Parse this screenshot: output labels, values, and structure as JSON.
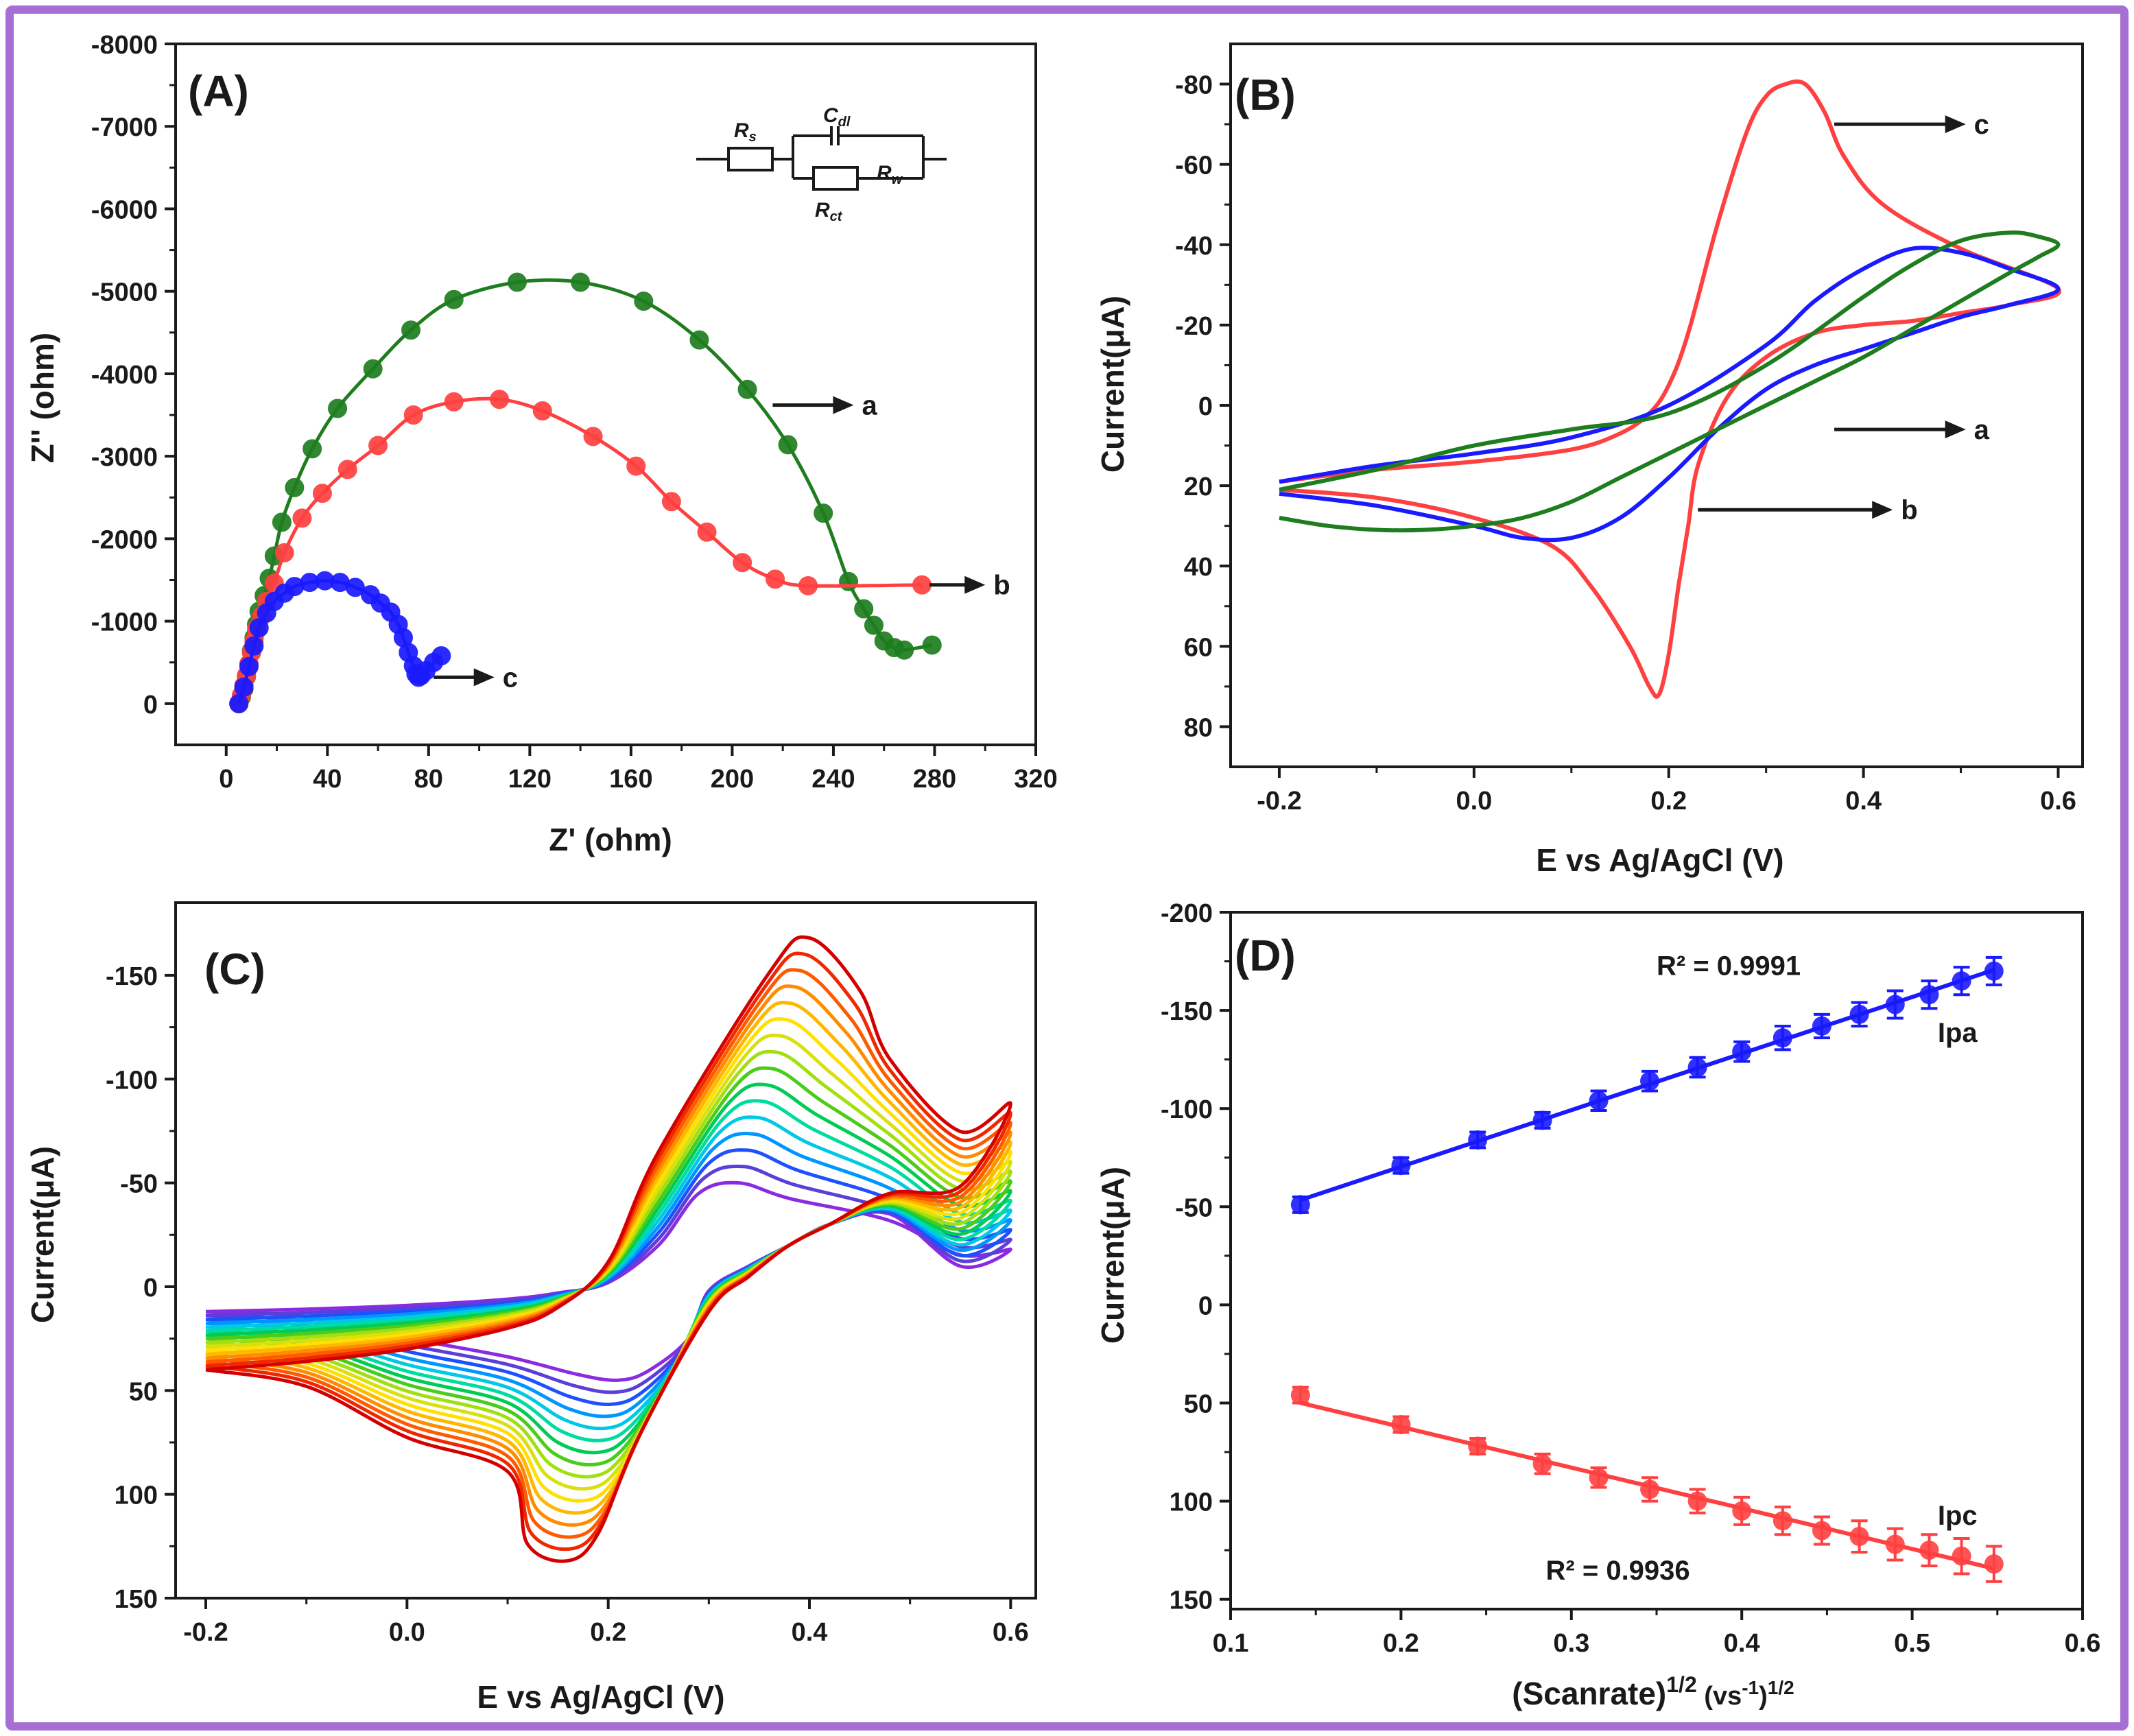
{
  "colors": {
    "border": "#a56fd4",
    "green": "#1e7d1e",
    "red": "#ff4040",
    "blue": "#1a1aff",
    "axis": "#1a1a1a"
  },
  "chart_data": [
    {
      "id": "A",
      "type": "scatter",
      "panel_label": "(A)",
      "xlabel": "Z' (ohm)",
      "ylabel": "Z'' (ohm)",
      "xlim": [
        -20,
        320
      ],
      "ylim": [
        500,
        -8000
      ],
      "xticks": [
        0,
        40,
        80,
        120,
        160,
        200,
        240,
        280,
        320
      ],
      "xtick_labels": [
        "0",
        "40",
        "80",
        "120",
        "160",
        "200",
        "240",
        "280",
        "320"
      ],
      "yticks": [
        0,
        -1000,
        -2000,
        -3000,
        -4000,
        -5000,
        -6000,
        -7000,
        -8000
      ],
      "ytick_labels": [
        "0",
        "-1000",
        "-2000",
        "-3000",
        "-4000",
        "-5000",
        "-6000",
        "-7000",
        "-8000"
      ],
      "circuit_labels": {
        "rs": "R",
        "rs_sub": "s",
        "cdl": "C",
        "cdl_sub": "dl",
        "rw": "R",
        "rw_sub": "w",
        "rct": "R",
        "rct_sub": "ct"
      },
      "series": [
        {
          "name": "a",
          "color": "green",
          "x": [
            5,
            6,
            7,
            8,
            9,
            10,
            11,
            12,
            13,
            15,
            17,
            19,
            22,
            27,
            34,
            44,
            58,
            73,
            90,
            115,
            140,
            165,
            187,
            206,
            222,
            236,
            246,
            252,
            256,
            260,
            264,
            268,
            279
          ],
          "y": [
            0,
            -80,
            -180,
            -330,
            -480,
            -640,
            -800,
            -960,
            -1120,
            -1310,
            -1520,
            -1790,
            -2200,
            -2620,
            -3090,
            -3580,
            -4060,
            -4530,
            -4900,
            -5110,
            -5110,
            -4880,
            -4410,
            -3810,
            -3140,
            -2310,
            -1480,
            -1150,
            -950,
            -760,
            -680,
            -650,
            -710
          ]
        },
        {
          "name": "b",
          "color": "red",
          "x": [
            5,
            6,
            7,
            8,
            9,
            10,
            11,
            12,
            14,
            16,
            19,
            23,
            30,
            38,
            48,
            60,
            74,
            90,
            108,
            125,
            145,
            162,
            176,
            190,
            204,
            217,
            230,
            275
          ],
          "y": [
            0,
            -100,
            -220,
            -340,
            -480,
            -620,
            -760,
            -900,
            -1060,
            -1240,
            -1460,
            -1830,
            -2250,
            -2550,
            -2840,
            -3130,
            -3500,
            -3660,
            -3690,
            -3550,
            -3240,
            -2880,
            -2450,
            -2080,
            -1710,
            -1510,
            -1430,
            -1440
          ]
        },
        {
          "name": "c",
          "color": "blue",
          "x": [
            5,
            7,
            9,
            11,
            13,
            16,
            19,
            23,
            27,
            33,
            39,
            45,
            51,
            57,
            61,
            65,
            68,
            70,
            72,
            74,
            75,
            76,
            77,
            79,
            82,
            85
          ],
          "y": [
            0,
            -200,
            -450,
            -700,
            -920,
            -1100,
            -1240,
            -1340,
            -1420,
            -1470,
            -1490,
            -1470,
            -1410,
            -1320,
            -1220,
            -1110,
            -960,
            -800,
            -620,
            -460,
            -360,
            -320,
            -340,
            -400,
            -500,
            -580
          ]
        }
      ],
      "annotations": [
        "a",
        "b",
        "c"
      ]
    },
    {
      "id": "B",
      "type": "line",
      "panel_label": "(B)",
      "xlabel": "E vs Ag/AgCl (V)",
      "ylabel": "Current(μA)",
      "xlim": [
        -0.25,
        0.625
      ],
      "ylim": [
        90,
        -90
      ],
      "xticks": [
        -0.2,
        0.0,
        0.2,
        0.4,
        0.6
      ],
      "xtick_labels": [
        "-0.2",
        "0.0",
        "0.2",
        "0.4",
        "0.6"
      ],
      "yticks": [
        80,
        60,
        40,
        20,
        0,
        -20,
        -40,
        -60,
        -80
      ],
      "ytick_labels": [
        "80",
        "60",
        "40",
        "20",
        "0",
        "-20",
        "-40",
        "-60",
        "-80"
      ],
      "series": [
        {
          "name": "c",
          "color": "red",
          "x": [
            -0.2,
            -0.1,
            0.0,
            0.1,
            0.15,
            0.18,
            0.2,
            0.22,
            0.25,
            0.28,
            0.3,
            0.32,
            0.34,
            0.36,
            0.38,
            0.42,
            0.5,
            0.6,
            0.55,
            0.5,
            0.45,
            0.4,
            0.35,
            0.3,
            0.26,
            0.23,
            0.22,
            0.21,
            0.2,
            0.19,
            0.18,
            0.16,
            0.12,
            0.08,
            0.0,
            -0.1,
            -0.2
          ],
          "y": [
            19,
            16,
            14,
            11,
            7,
            2,
            -5,
            -18,
            -45,
            -68,
            -77,
            -80,
            -80,
            -73,
            -62,
            -50,
            -39,
            -29,
            -25,
            -23,
            -21,
            -20,
            -18,
            -12,
            -2,
            15,
            30,
            45,
            62,
            72,
            70,
            60,
            45,
            35,
            28,
            23,
            21
          ]
        },
        {
          "name": "a",
          "color": "blue",
          "x": [
            -0.2,
            -0.1,
            0.0,
            0.1,
            0.2,
            0.3,
            0.35,
            0.4,
            0.45,
            0.5,
            0.55,
            0.6,
            0.55,
            0.5,
            0.45,
            0.4,
            0.35,
            0.3,
            0.25,
            0.2,
            0.15,
            0.1,
            0.05,
            0.0,
            -0.1,
            -0.2
          ],
          "y": [
            19,
            15,
            12,
            8,
            0,
            -15,
            -26,
            -34,
            -39,
            -38,
            -34,
            -29,
            -25,
            -22,
            -18,
            -14,
            -10,
            -4,
            6,
            18,
            28,
            33,
            33,
            30,
            25,
            22
          ]
        },
        {
          "name": "b",
          "color": "green",
          "x": [
            -0.2,
            -0.1,
            0.0,
            0.1,
            0.2,
            0.3,
            0.4,
            0.45,
            0.5,
            0.55,
            0.58,
            0.6,
            0.58,
            0.55,
            0.5,
            0.45,
            0.4,
            0.35,
            0.3,
            0.25,
            0.2,
            0.15,
            0.1,
            0.05,
            0.0,
            -0.05,
            -0.1,
            -0.15,
            -0.2
          ],
          "y": [
            21,
            16,
            10,
            6,
            2,
            -10,
            -27,
            -35,
            -41,
            -43,
            -42,
            -40,
            -37,
            -33,
            -26,
            -19,
            -12,
            -6,
            0,
            6,
            12,
            18,
            24,
            28,
            30,
            31,
            31,
            30,
            28
          ]
        }
      ],
      "annotations": [
        "c",
        "a",
        "b"
      ]
    },
    {
      "id": "C",
      "type": "line",
      "panel_label": "(C)",
      "xlabel": "E vs Ag/AgCl (V)",
      "ylabel": "Current(μA)",
      "xlim": [
        -0.23,
        0.625
      ],
      "ylim": [
        150,
        -185
      ],
      "xticks": [
        -0.2,
        0.0,
        0.2,
        0.4,
        0.6
      ],
      "xtick_labels": [
        "-0.2",
        "0.0",
        "0.2",
        "0.4",
        "0.6"
      ],
      "yticks": [
        150,
        100,
        50,
        0,
        -50,
        -100,
        -150
      ],
      "ytick_labels": [
        "150",
        "100",
        "50",
        "0",
        "-50",
        "-100",
        "-150"
      ],
      "series_count": 16,
      "anodic_peak_range": [
        -50,
        -168
      ],
      "cathodic_peak_range": [
        45,
        132
      ],
      "color_scale": [
        "#8a2be2",
        "#5a3fd8",
        "#1e50ff",
        "#0096ff",
        "#00c8e6",
        "#00dca0",
        "#00cc55",
        "#4ccc1a",
        "#a0e010",
        "#d8e010",
        "#ffe000",
        "#ffb800",
        "#ff8c00",
        "#ff5a00",
        "#f02800",
        "#d40000"
      ]
    },
    {
      "id": "D",
      "type": "scatter",
      "panel_label": "(D)",
      "xlabel": "(Scanrate)",
      "xlabel_sup1": "1/2",
      "xlabel_mid": " (vs",
      "xlabel_sup2": "-1",
      "xlabel_end": ")",
      "xlabel_sup3": "1/2",
      "ylabel": "Current(μA)",
      "xlim": [
        0.1,
        0.6
      ],
      "ylim": [
        155,
        -200
      ],
      "xticks": [
        0.1,
        0.2,
        0.3,
        0.4,
        0.5,
        0.6
      ],
      "xtick_labels": [
        "0.1",
        "0.2",
        "0.3",
        "0.4",
        "0.5",
        "0.6"
      ],
      "yticks": [
        150,
        100,
        50,
        0,
        -50,
        -100,
        -150,
        -200
      ],
      "ytick_labels": [
        "150",
        "100",
        "50",
        "0",
        "-50",
        "-100",
        "-150",
        "-200"
      ],
      "x": [
        0.141,
        0.2,
        0.245,
        0.283,
        0.316,
        0.346,
        0.374,
        0.4,
        0.424,
        0.447,
        0.469,
        0.49,
        0.51,
        0.529,
        0.548
      ],
      "series": [
        {
          "name": "Ipa",
          "color": "blue",
          "y": [
            -51,
            -71,
            -84,
            -94,
            -104,
            -114,
            -121,
            -129,
            -136,
            -142,
            -148,
            -153,
            -158,
            -165,
            -170
          ],
          "err": [
            4,
            4,
            4,
            4,
            5,
            5,
            5,
            5,
            6,
            6,
            6,
            7,
            7,
            7,
            7
          ],
          "r2": "R² = 0.9991"
        },
        {
          "name": "Ipc",
          "color": "red",
          "y": [
            46,
            61,
            72,
            81,
            88,
            94,
            100,
            105,
            110,
            115,
            118,
            122,
            125,
            128,
            132
          ],
          "err": [
            4,
            4,
            4,
            5,
            5,
            6,
            6,
            7,
            7,
            7,
            8,
            8,
            8,
            9,
            9
          ],
          "r2": "R² = 0.9936"
        }
      ]
    }
  ]
}
